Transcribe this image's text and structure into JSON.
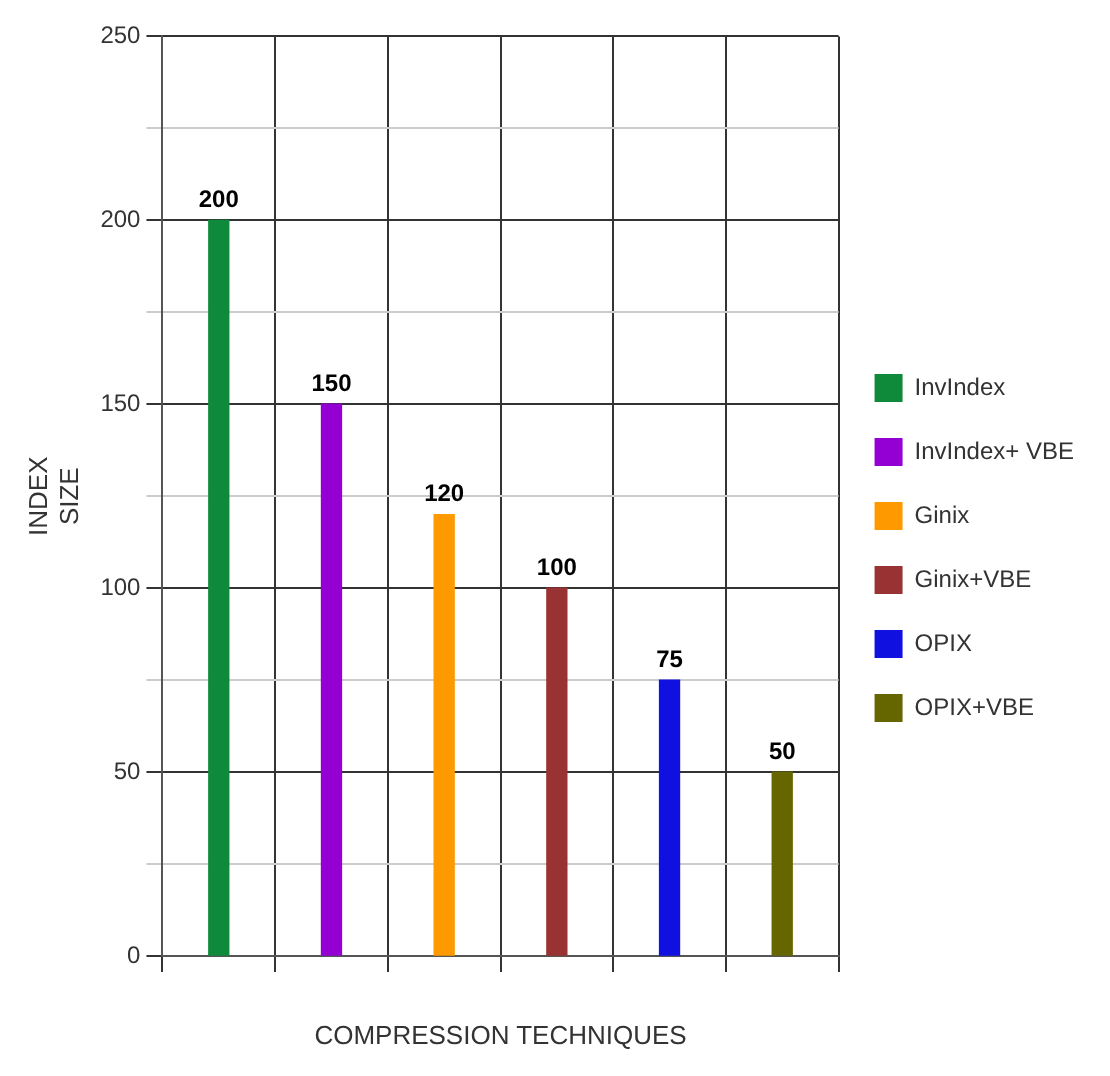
{
  "chart_data": {
    "type": "bar",
    "xlabel": "COMPRESSION TECHNIQUES",
    "ylabel": "INDEX SIZE",
    "categories": [
      null,
      null,
      null,
      null,
      null,
      null
    ],
    "series": [
      {
        "name": "InvIndex",
        "color": "#0f8a3a",
        "values": [
          200,
          null,
          null,
          null,
          null,
          null
        ]
      },
      {
        "name": "InvIndex+ VBE",
        "color": "#9400d3",
        "values": [
          null,
          150,
          null,
          null,
          null,
          null
        ]
      },
      {
        "name": "Ginix",
        "color": "#ff9900",
        "values": [
          null,
          null,
          120,
          null,
          null,
          null
        ]
      },
      {
        "name": "Ginix+VBE",
        "color": "#993333",
        "values": [
          null,
          null,
          null,
          100,
          null,
          null
        ]
      },
      {
        "name": "OPIX",
        "color": "#1010e0",
        "values": [
          null,
          null,
          null,
          null,
          75,
          null
        ]
      },
      {
        "name": "OPIX+VBE",
        "color": "#666600",
        "values": [
          null,
          null,
          null,
          null,
          null,
          50
        ]
      }
    ],
    "ylim": [
      0,
      250
    ],
    "yticks": [
      0,
      {
        "value": 25,
        "label": null
      },
      50,
      {
        "value": 75,
        "label": null
      },
      100,
      {
        "value": 125,
        "label": null
      },
      150,
      {
        "value": 175,
        "label": null
      },
      200,
      {
        "value": 225,
        "label": null
      },
      250
    ],
    "grid": true,
    "legend": "right",
    "data_labels": true
  }
}
